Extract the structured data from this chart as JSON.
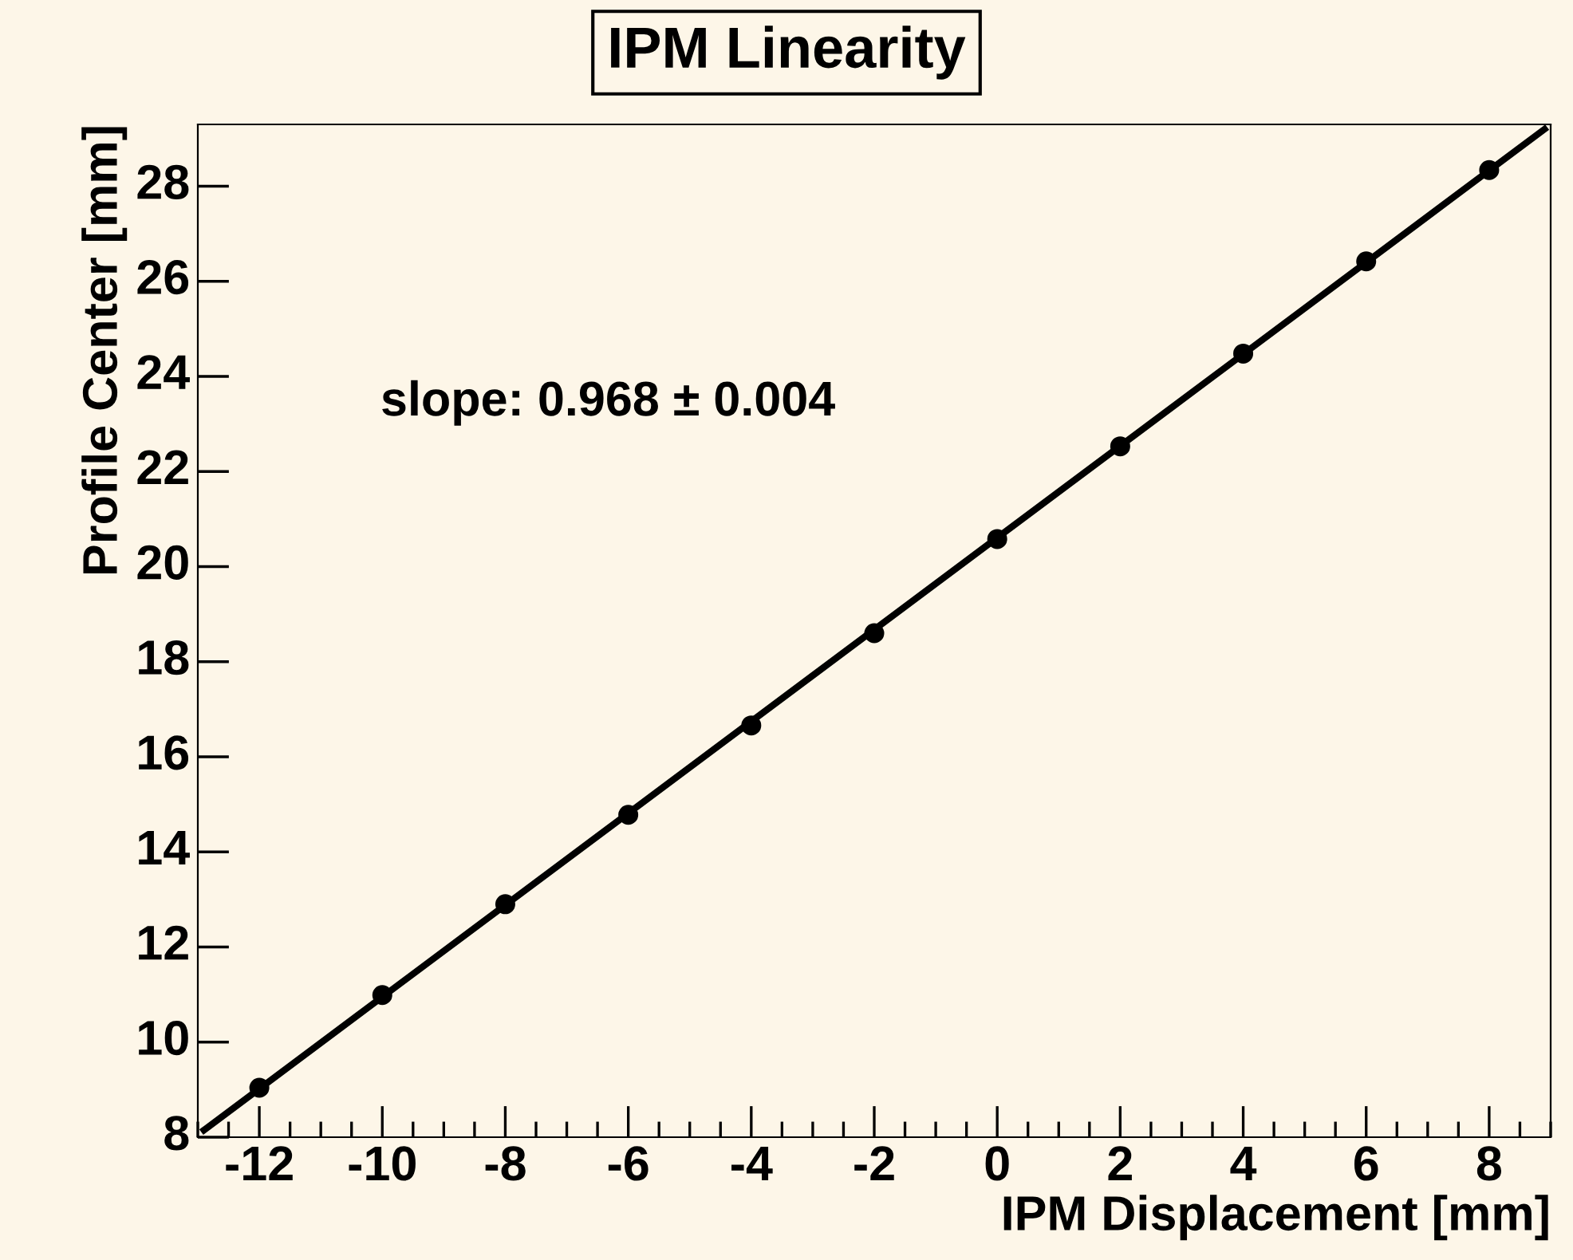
{
  "chart_data": {
    "type": "scatter",
    "title": "IPM Linearity",
    "xlabel": "IPM Displacement [mm]",
    "ylabel": "Profile Center [mm]",
    "x": [
      -12,
      -10,
      -8,
      -6,
      -4,
      -2,
      0,
      2,
      4,
      6,
      8
    ],
    "series": [
      {
        "type": "scatter",
        "color": "#000000",
        "marker": "circle",
        "values": [
          9.04,
          10.99,
          12.9,
          14.78,
          16.66,
          18.6,
          20.58,
          22.53,
          24.48,
          26.42,
          28.34
        ]
      },
      {
        "type": "line",
        "color": "#000000",
        "x": [
          -12.9,
          8.9
        ],
        "values": [
          8.15,
          29.2
        ]
      }
    ],
    "annotations": [
      {
        "text": "slope: 0.968 ± 0.004"
      }
    ],
    "xlim": [
      -13,
      9
    ],
    "ylim": [
      8,
      29.3
    ],
    "xticks": [
      -12,
      -10,
      -8,
      -6,
      -4,
      -2,
      0,
      2,
      4,
      6,
      8
    ],
    "yticks": [
      8,
      10,
      12,
      14,
      16,
      18,
      20,
      22,
      24,
      26,
      28
    ],
    "grid": false,
    "legend": false
  }
}
